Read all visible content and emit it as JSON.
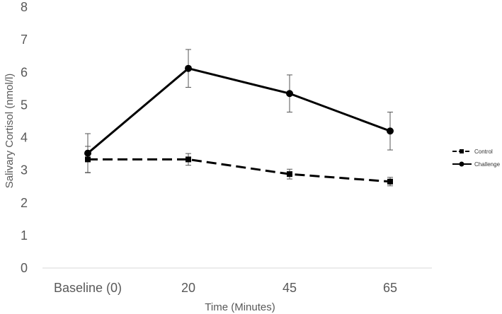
{
  "chart_data": {
    "type": "line",
    "title": "",
    "xlabel": "Time (Minutes)",
    "ylabel": "Salivary Cortisol (nmol/l)",
    "categories": [
      "Baseline (0)",
      "20",
      "45",
      "65"
    ],
    "ylim": [
      0,
      8
    ],
    "yticks": [
      0,
      1,
      2,
      3,
      4,
      5,
      6,
      7,
      8
    ],
    "grid": false,
    "legend_position": "right",
    "series": [
      {
        "name": "Control",
        "line_style": "dashed",
        "marker": "square",
        "values": [
          3.33,
          3.33,
          2.88,
          2.65
        ],
        "errors": [
          0.4,
          0.18,
          0.15,
          0.13
        ]
      },
      {
        "name": "Challenge",
        "line_style": "solid",
        "marker": "circle",
        "values": [
          3.52,
          6.12,
          5.35,
          4.2
        ],
        "errors": [
          0.6,
          0.58,
          0.57,
          0.58
        ]
      }
    ]
  },
  "colors": {
    "line": "#000000",
    "axis": "#d9d9d9",
    "tick_text": "#595959",
    "error_bar": "#555555"
  }
}
